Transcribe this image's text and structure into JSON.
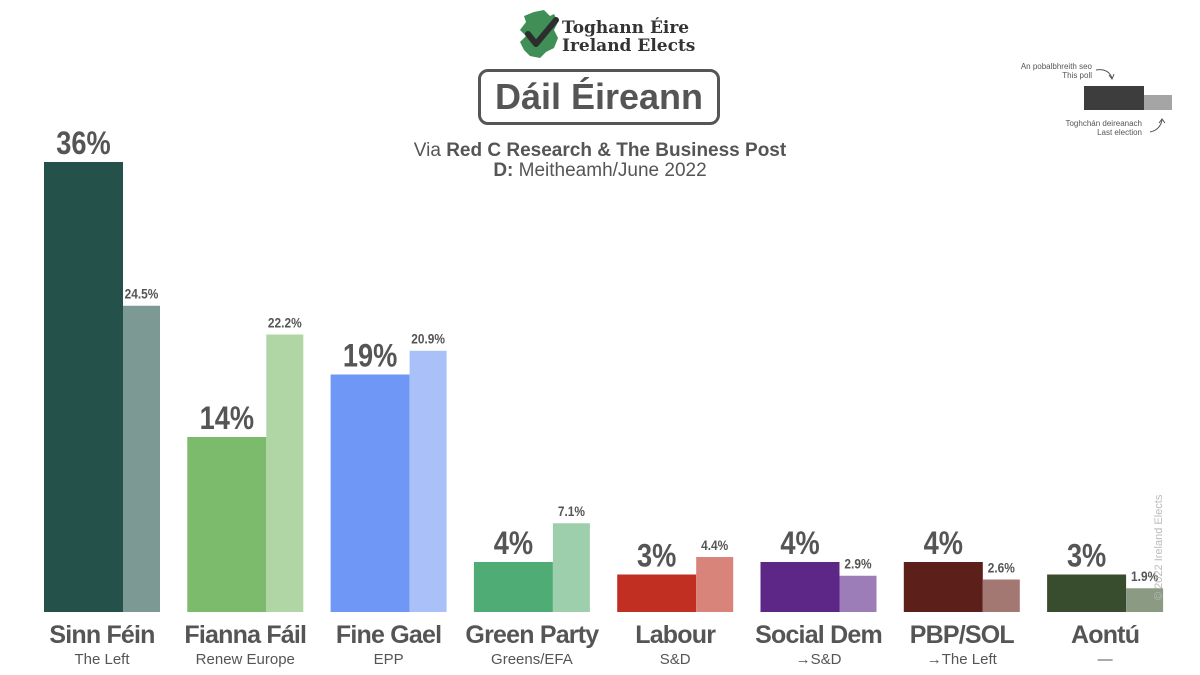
{
  "header": {
    "logo_line1": "Toghann Éire",
    "logo_line2": "Ireland Elects",
    "title": "Dáil Éireann",
    "via_prefix": "Via ",
    "via_source": "Red C Research & The Business Post",
    "date_prefix": "D:",
    "date": " Meitheamh/June 2022"
  },
  "legend": {
    "this_poll_ga": "An pobalbhreith seo",
    "this_poll_en": "This poll",
    "last_election_ga": "Toghchán deireanach",
    "last_election_en": "Last election"
  },
  "watermark": "© 2022 Ireland Elects",
  "chart_data": {
    "type": "bar",
    "categories": [
      "Sinn Féin",
      "Fianna Fáil",
      "Fine Gael",
      "Green Party",
      "Labour",
      "Social Dem",
      "PBP/SOL",
      "Aontú"
    ],
    "subtitles": [
      "The Left",
      "Renew Europe",
      "EPP",
      "Greens/EFA",
      "S&D",
      "→S&D",
      "→The Left",
      "—"
    ],
    "series": [
      {
        "name": "This poll",
        "values": [
          36,
          14,
          19,
          4,
          3,
          4,
          4,
          3
        ],
        "labels": [
          "36%",
          "14%",
          "19%",
          "4%",
          "3%",
          "4%",
          "4%",
          "3%"
        ]
      },
      {
        "name": "Last election",
        "values": [
          24.5,
          22.2,
          20.9,
          7.1,
          4.4,
          2.9,
          2.6,
          1.9
        ],
        "labels": [
          "24.5%",
          "22.2%",
          "20.9%",
          "7.1%",
          "4.4%",
          "2.9%",
          "2.6%",
          "1.9%"
        ]
      }
    ],
    "colors_poll": [
      "#24524a",
      "#7cba6c",
      "#6e97f6",
      "#4fac74",
      "#c02f22",
      "#5c2787",
      "#5d1f1a",
      "#384d2e"
    ],
    "colors_last": [
      "#7c9993",
      "#b0d6a5",
      "#a9c1f8",
      "#9ecfad",
      "#d8847a",
      "#9d7db8",
      "#a37873",
      "#8b9b83"
    ],
    "ylim": [
      0,
      36
    ],
    "grid": false,
    "legend_position": "top-right"
  }
}
